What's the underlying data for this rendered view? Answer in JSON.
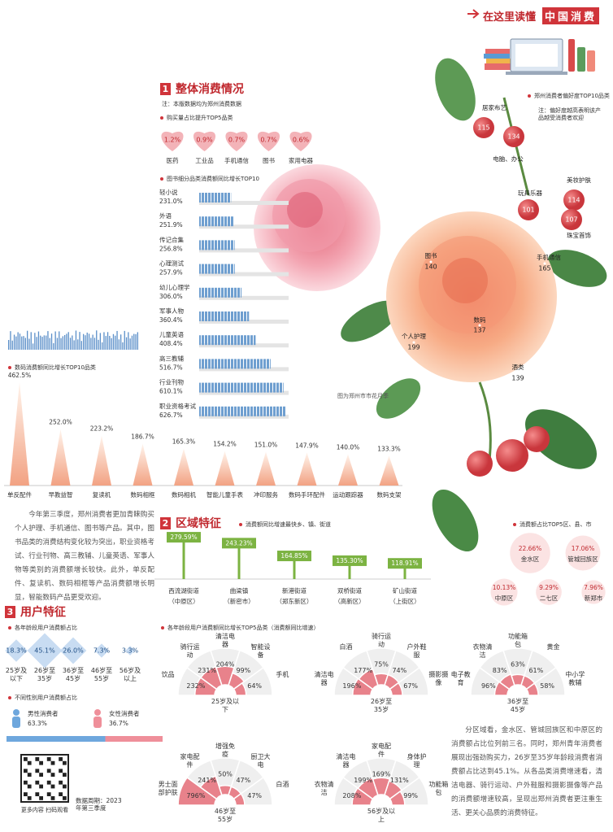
{
  "header": {
    "title": "在这里读懂",
    "highlight": "中国消费"
  },
  "section1": {
    "number": "1",
    "title": "整体消费情况",
    "note": "注：本版数据均为郑州消费数据",
    "top5": {
      "title": "购买量占比提升TOP5品类",
      "categories": [
        "医药",
        "工业品",
        "手机通信",
        "图书",
        "家用电器"
      ],
      "values": [
        1.2,
        0.9,
        0.7,
        0.7,
        0.6
      ],
      "value_labels": [
        "1.2%",
        "0.9%",
        "0.7%",
        "0.7%",
        "0.6%"
      ]
    },
    "books": {
      "title": "图书细分品类消费额同比增长TOP10",
      "categories": [
        "轻小说",
        "外语",
        "传记合集",
        "心理测试",
        "幼儿心理学",
        "军事人物",
        "儿童英语",
        "高三教辅",
        "行业刊物",
        "职业资格考试"
      ],
      "values": [
        231.0,
        251.9,
        256.8,
        257.9,
        306.0,
        360.4,
        408.4,
        516.7,
        610.1,
        626.7
      ],
      "value_labels": [
        "231.0%",
        "251.9%",
        "256.8%",
        "257.9%",
        "306.0%",
        "360.4%",
        "408.4%",
        "516.7%",
        "610.1%",
        "626.7%"
      ]
    },
    "preference": {
      "title": "郑州消费者偏好度TOP10品类",
      "note": "注：偏好度越高表明该产品越受消费者欢迎",
      "categories": [
        "居家布艺",
        "电脑、办公",
        "玩具乐器",
        "美妆护肤",
        "珠宝首饰",
        "图书",
        "手机通信",
        "数码",
        "个人护理",
        "酒类"
      ],
      "values": [
        115,
        134,
        101,
        114,
        107,
        140,
        165,
        137,
        199,
        139
      ],
      "caption": "图为郑州市市花月季"
    },
    "digital": {
      "title": "数码消费额同比增长TOP10品类",
      "categories": [
        "单反配件",
        "早教益智",
        "复读机",
        "数码相框",
        "数码相机",
        "智能儿童手表",
        "冲印服务",
        "数码手环配件",
        "运动跟踪器",
        "数码支架"
      ],
      "values": [
        462.5,
        252.0,
        223.2,
        186.7,
        165.3,
        154.2,
        151.0,
        147.9,
        140.0,
        133.3
      ],
      "value_labels": [
        "462.5%",
        "252.0%",
        "223.2%",
        "186.7%",
        "165.3%",
        "154.2%",
        "151.0%",
        "147.9%",
        "140.0%",
        "133.3%"
      ]
    },
    "text": "今年第三季度，郑州消费者更加青睐购买个人护理、手机通信、图书等产品。其中，图书品类的消费结构变化较为突出，职业资格考试、行业刊物、高三教辅、儿童英语、军事人物等类别的消费额增长较快。此外，单反配件、复读机、数码相框等产品消费额增长明显，智能数码产品更受欢迎。"
  },
  "section2": {
    "number": "2",
    "title": "区域特征",
    "streets": {
      "title": "消费额同比增速最快乡、镇、街道",
      "categories": [
        "西流湖街道",
        "曲梁镇",
        "新港街道",
        "双桥街道",
        "矿山街道"
      ],
      "districts": [
        "（中原区）",
        "（新密市）",
        "（郑东新区）",
        "（高新区）",
        "（上街区）"
      ],
      "values": [
        279.59,
        243.23,
        164.85,
        135.3,
        118.91
      ],
      "value_labels": [
        "279.59%",
        "243.23%",
        "164.85%",
        "135.30%",
        "118.91%"
      ]
    },
    "districts": {
      "title": "消费额占比TOP5区、县、市",
      "categories": [
        "金水区",
        "管城回族区",
        "中原区",
        "二七区",
        "新郑市"
      ],
      "values": [
        22.66,
        17.06,
        10.13,
        9.29,
        7.96
      ],
      "value_labels": [
        "22.66%",
        "17.06%",
        "10.13%",
        "9.29%",
        "7.96%"
      ]
    },
    "text": "分区域看，金水区、管城回族区和中原区的消费额占比位列前三名。同时，郑州青年消费者展现出强劲购买力，26岁至35岁年龄段消费者消费额占比达到45.1%。从各品类消费增速看，清洁电器、骑行运动、户外鞋服和摄影摄像等产品的消费额增速较高，呈现出郑州消费者更注重生活、更关心品质的消费特征。"
  },
  "section3": {
    "number": "3",
    "title": "用户特征",
    "age": {
      "title": "各年龄段用户消费额占比",
      "categories": [
        "25岁及以下",
        "26岁至35岁",
        "36岁至45岁",
        "46岁至55岁",
        "56岁及以上"
      ],
      "values": [
        18.3,
        45.1,
        26.0,
        7.3,
        3.3
      ],
      "value_labels": [
        "18.3%",
        "45.1%",
        "26.0%",
        "7.3%",
        "3.3%"
      ]
    },
    "gender": {
      "title": "不同性别用户消费额占比",
      "categories": [
        "男性消费者",
        "女性消费者"
      ],
      "values": [
        63.3,
        36.7
      ],
      "value_labels": [
        "63.3%",
        "36.7%"
      ]
    },
    "growth": {
      "title": "各年龄段用户消费额同比增长TOP5品类（消费额同比增速）",
      "groups": [
        {
          "name": "25岁及以下",
          "categories": [
            "饮品",
            "骑行运动",
            "清洁电器",
            "智能设备",
            "手机"
          ],
          "values": [
            232,
            231,
            204,
            99,
            64
          ],
          "value_labels": [
            "232%",
            "231%",
            "204%",
            "99%",
            "64%"
          ]
        },
        {
          "name": "26岁至35岁",
          "categories": [
            "清洁电器",
            "白酒",
            "骑行运动",
            "户外鞋服",
            "摄影摄像"
          ],
          "values": [
            196,
            177,
            75,
            74,
            67
          ],
          "value_labels": [
            "196%",
            "177%",
            "75%",
            "74%",
            "67%"
          ]
        },
        {
          "name": "36岁至45岁",
          "categories": [
            "电子教育",
            "衣物清洁",
            "功能箱包",
            "黄金",
            "中小学教辅"
          ],
          "values": [
            96,
            83,
            63,
            61,
            58
          ],
          "value_labels": [
            "96%",
            "83%",
            "63%",
            "61%",
            "58%"
          ]
        },
        {
          "name": "46岁至55岁",
          "categories": [
            "男士面部护肤",
            "家电配件",
            "增强免疫",
            "厨卫大电",
            "白酒"
          ],
          "values": [
            796,
            241,
            50,
            47,
            47
          ],
          "value_labels": [
            "796%",
            "241%",
            "50%",
            "47%",
            "47%"
          ]
        },
        {
          "name": "56岁及以上",
          "categories": [
            "衣物清洁",
            "清洁电器",
            "家电配件",
            "身体护理",
            "功能箱包"
          ],
          "values": [
            208,
            199,
            169,
            131,
            99
          ],
          "value_labels": [
            "208%",
            "199%",
            "169%",
            "131%",
            "99%"
          ]
        }
      ]
    }
  },
  "footer": {
    "qr": "更多内容 扫码观看",
    "period": "数据周期：2023年第三季度"
  }
}
